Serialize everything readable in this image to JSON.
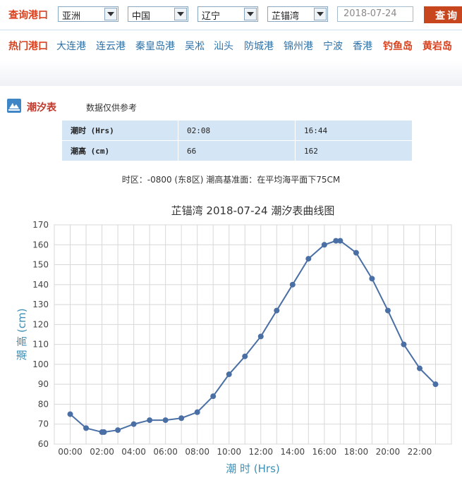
{
  "search": {
    "label": "查询港口",
    "continent": "亚洲",
    "country": "中国",
    "province": "辽宁",
    "port": "芷锚湾",
    "date": "2018-07-24",
    "button": "查询"
  },
  "hot_ports": {
    "label": "热门港口",
    "items": [
      "大连港",
      "连云港",
      "秦皇岛港",
      "吴凇",
      "汕头",
      "防城港",
      "锦州港",
      "宁波",
      "香港",
      "钓鱼岛",
      "黄岩岛"
    ],
    "highlight": [
      "钓鱼岛",
      "黄岩岛"
    ]
  },
  "tide_table": {
    "title": "潮汐表",
    "note": "数据仅供参考",
    "time_label": "潮时 (Hrs)",
    "height_label": "潮高 (cm)",
    "times": [
      "02:08",
      "16:44"
    ],
    "heights": [
      "66",
      "162"
    ],
    "baseline_note": "时区：-0800 (东8区) 潮高基准面：在平均海平面下75CM"
  },
  "chart_data": {
    "type": "line",
    "title": "芷锚湾 2018-07-24 潮汐表曲线图",
    "xlabel": "潮 时 (Hrs)",
    "ylabel": "潮 高 (cm)",
    "ylim": [
      60,
      170
    ],
    "yticks": [
      60,
      70,
      80,
      90,
      100,
      110,
      120,
      130,
      140,
      150,
      160,
      170
    ],
    "xlim": [
      -1,
      24
    ],
    "xticks": [
      "00:00",
      "02:00",
      "04:00",
      "06:00",
      "08:00",
      "10:00",
      "12:00",
      "14:00",
      "16:00",
      "18:00",
      "20:00",
      "22:00"
    ],
    "grid": true,
    "color": "#4a6fa5",
    "x": [
      0,
      1,
      2,
      2.13,
      3,
      4,
      5,
      6,
      7,
      8,
      9,
      10,
      11,
      12,
      13,
      14,
      15,
      16,
      16.73,
      17,
      18,
      19,
      20,
      21,
      22,
      23
    ],
    "y": [
      75,
      68,
      66,
      66,
      67,
      70,
      72,
      72,
      73,
      76,
      84,
      95,
      104,
      114,
      127,
      140,
      153,
      160,
      162,
      162,
      156,
      143,
      127,
      110,
      98,
      90
    ]
  }
}
